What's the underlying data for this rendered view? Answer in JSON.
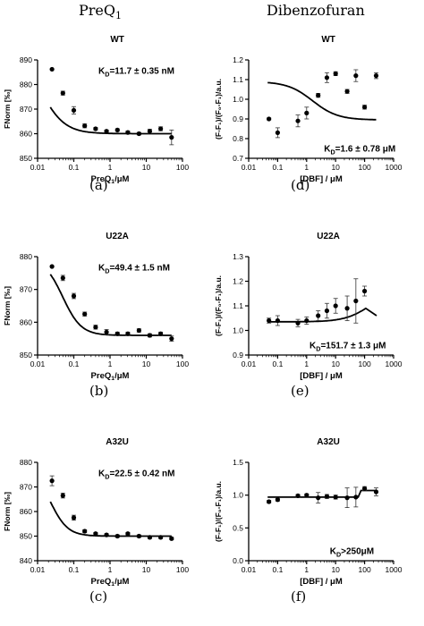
{
  "headers": {
    "left": "PreQ",
    "left_sub": "1",
    "right": "Dibenzofuran"
  },
  "panel_labels": [
    "(a)",
    "(d)",
    "(b)",
    "(e)",
    "(c)",
    "(f)"
  ],
  "chart_data": [
    {
      "id": "a",
      "type": "scatter",
      "title": "WT",
      "annotation": "K_D=11.7 ± 0.35 nM",
      "xlabel": "PreQ1/μM",
      "ylabel": "FNorm [‰]",
      "xscale": "log",
      "xlim": [
        0.01,
        100
      ],
      "ylim": [
        850,
        890
      ],
      "xticks": [
        0.01,
        0.1,
        1,
        10,
        100
      ],
      "xticklabels": [
        "0.01",
        "0.1",
        "1",
        "10",
        "100"
      ],
      "yticks": [
        850,
        860,
        870,
        880,
        890
      ],
      "yticklabels": [
        "850",
        "860",
        "870",
        "880",
        "890"
      ],
      "points": [
        {
          "x": 0.025,
          "y": 886.2,
          "err": 0
        },
        {
          "x": 0.05,
          "y": 876.5,
          "err": 0.8
        },
        {
          "x": 0.1,
          "y": 869.5,
          "err": 1.5
        },
        {
          "x": 0.2,
          "y": 863.2,
          "err": 0.8
        },
        {
          "x": 0.4,
          "y": 862.0,
          "err": 0.5
        },
        {
          "x": 0.8,
          "y": 861.0,
          "err": 0.5
        },
        {
          "x": 1.6,
          "y": 861.5,
          "err": 0.5
        },
        {
          "x": 3.1,
          "y": 860.5,
          "err": 0.6
        },
        {
          "x": 6.3,
          "y": 860.0,
          "err": 0.5
        },
        {
          "x": 12.5,
          "y": 861.0,
          "err": 0.8
        },
        {
          "x": 25,
          "y": 862.0,
          "err": 0.8
        },
        {
          "x": 50,
          "y": 858.5,
          "err": 3.0
        }
      ],
      "fit": {
        "model": "hill",
        "bottom": 860,
        "top": 896,
        "kd": 0.0117,
        "n": 1.3
      }
    },
    {
      "id": "d",
      "type": "scatter",
      "title": "WT",
      "annotation": "K_D=1.6 ± 0.78 μM",
      "xlabel": "[DBF] / μM",
      "ylabel": "(F-F₁)/(F₀-F₁)/a.u.",
      "xscale": "log",
      "xlim": [
        0.01,
        1000
      ],
      "ylim": [
        0.7,
        1.2
      ],
      "xticks": [
        0.01,
        0.1,
        1,
        10,
        100,
        1000
      ],
      "xticklabels": [
        "0.01",
        "0.1",
        "1",
        "10",
        "100",
        "1000"
      ],
      "yticks": [
        0.7,
        0.8,
        0.9,
        1.0,
        1.1,
        1.2
      ],
      "yticklabels": [
        "0.7",
        "0.8",
        "0.9",
        "1.0",
        "1.1",
        "1.2"
      ],
      "points": [
        {
          "x": 0.05,
          "y": 0.9,
          "err": 0.005
        },
        {
          "x": 0.1,
          "y": 0.83,
          "err": 0.025
        },
        {
          "x": 0.5,
          "y": 0.89,
          "err": 0.03
        },
        {
          "x": 1.0,
          "y": 0.93,
          "err": 0.03
        },
        {
          "x": 2.5,
          "y": 1.02,
          "err": 0.01
        },
        {
          "x": 5,
          "y": 1.11,
          "err": 0.025
        },
        {
          "x": 10,
          "y": 1.13,
          "err": 0.01
        },
        {
          "x": 25,
          "y": 1.04,
          "err": 0.01
        },
        {
          "x": 50,
          "y": 1.12,
          "err": 0.03
        },
        {
          "x": 100,
          "y": 0.96,
          "err": 0.01
        },
        {
          "x": 250,
          "y": 1.12,
          "err": 0.015
        }
      ],
      "fit": {
        "model": "hill",
        "bottom": 0.895,
        "top": 1.09,
        "kd": 1.6,
        "n": 1.0
      }
    },
    {
      "id": "b",
      "type": "scatter",
      "title": "U22A",
      "annotation": "K_D=49.4 ± 1.5 nM",
      "xlabel": "PreQ1/μM",
      "ylabel": "FNorm [‰]",
      "xscale": "log",
      "xlim": [
        0.01,
        100
      ],
      "ylim": [
        850,
        880
      ],
      "xticks": [
        0.01,
        0.1,
        1,
        10,
        100
      ],
      "xticklabels": [
        "0.01",
        "0.1",
        "1",
        "10",
        "100"
      ],
      "yticks": [
        850,
        860,
        870,
        880
      ],
      "yticklabels": [
        "850",
        "860",
        "870",
        "880"
      ],
      "points": [
        {
          "x": 0.025,
          "y": 877.0,
          "err": 0
        },
        {
          "x": 0.05,
          "y": 873.5,
          "err": 0.8
        },
        {
          "x": 0.1,
          "y": 868.0,
          "err": 0.8
        },
        {
          "x": 0.2,
          "y": 862.5,
          "err": 0.6
        },
        {
          "x": 0.4,
          "y": 858.5,
          "err": 0.6
        },
        {
          "x": 0.8,
          "y": 857.0,
          "err": 0.8
        },
        {
          "x": 1.6,
          "y": 856.5,
          "err": 0.5
        },
        {
          "x": 3.1,
          "y": 856.5,
          "err": 0.5
        },
        {
          "x": 6.3,
          "y": 857.5,
          "err": 0.5
        },
        {
          "x": 12.5,
          "y": 856.0,
          "err": 0.5
        },
        {
          "x": 25,
          "y": 856.5,
          "err": 0.5
        },
        {
          "x": 50,
          "y": 855.0,
          "err": 0.8
        }
      ],
      "fit": {
        "model": "hill",
        "bottom": 856,
        "top": 879.5,
        "kd": 0.0494,
        "n": 1.7
      }
    },
    {
      "id": "e",
      "type": "scatter",
      "title": "U22A",
      "annotation": "K_D=151.7 ± 1.3 μM",
      "xlabel": "[DBF] / μM",
      "ylabel": "(F-F₁)/(F₀-F₁)/a.u.",
      "xscale": "log",
      "xlim": [
        0.01,
        1000
      ],
      "ylim": [
        0.9,
        1.3
      ],
      "xticks": [
        0.01,
        0.1,
        1,
        10,
        100,
        1000
      ],
      "xticklabels": [
        "0.01",
        "0.1",
        "1",
        "10",
        "100",
        "1000"
      ],
      "yticks": [
        0.9,
        1.0,
        1.1,
        1.2,
        1.3
      ],
      "yticklabels": [
        "0.9",
        "1.0",
        "1.1",
        "1.2",
        "1.3"
      ],
      "points": [
        {
          "x": 0.05,
          "y": 1.04,
          "err": 0.01
        },
        {
          "x": 0.1,
          "y": 1.04,
          "err": 0.02
        },
        {
          "x": 0.5,
          "y": 1.03,
          "err": 0.015
        },
        {
          "x": 1.0,
          "y": 1.04,
          "err": 0.015
        },
        {
          "x": 2.5,
          "y": 1.06,
          "err": 0.02
        },
        {
          "x": 5,
          "y": 1.08,
          "err": 0.03
        },
        {
          "x": 10,
          "y": 1.1,
          "err": 0.03
        },
        {
          "x": 25,
          "y": 1.09,
          "err": 0.05
        },
        {
          "x": 50,
          "y": 1.12,
          "err": 0.09
        },
        {
          "x": 100,
          "y": 1.16,
          "err": 0.02
        }
      ],
      "fit": {
        "model": "peak",
        "base": 1.035,
        "amp": 0.13,
        "kd": 151.7,
        "n": 1.0,
        "peak_x": 110,
        "end_x": 260,
        "end_y": 1.06
      }
    },
    {
      "id": "c",
      "type": "scatter",
      "title": "A32U",
      "annotation": "K_D=22.5 ± 0.42 nM",
      "xlabel": "PreQ1/μM",
      "ylabel": "FNorm [‰]",
      "xscale": "log",
      "xlim": [
        0.01,
        100
      ],
      "ylim": [
        840,
        880
      ],
      "xticks": [
        0.01,
        0.1,
        1,
        10,
        100
      ],
      "xticklabels": [
        "0.01",
        "0.1",
        "1",
        "10",
        "100"
      ],
      "yticks": [
        840,
        850,
        860,
        870,
        880
      ],
      "yticklabels": [
        "840",
        "850",
        "860",
        "870",
        "880"
      ],
      "points": [
        {
          "x": 0.025,
          "y": 872.5,
          "err": 2.0
        },
        {
          "x": 0.05,
          "y": 866.5,
          "err": 1.0
        },
        {
          "x": 0.1,
          "y": 857.5,
          "err": 1.0
        },
        {
          "x": 0.2,
          "y": 852.0,
          "err": 0.6
        },
        {
          "x": 0.4,
          "y": 851.0,
          "err": 0.5
        },
        {
          "x": 0.8,
          "y": 850.5,
          "err": 0.5
        },
        {
          "x": 1.6,
          "y": 850.0,
          "err": 0.5
        },
        {
          "x": 3.1,
          "y": 851.0,
          "err": 0.5
        },
        {
          "x": 6.3,
          "y": 850.0,
          "err": 0.5
        },
        {
          "x": 12.5,
          "y": 849.5,
          "err": 0.5
        },
        {
          "x": 25,
          "y": 849.5,
          "err": 0.5
        },
        {
          "x": 50,
          "y": 849.0,
          "err": 0.5
        }
      ],
      "fit": {
        "model": "hill",
        "bottom": 850,
        "top": 878,
        "kd": 0.0225,
        "n": 1.8
      }
    },
    {
      "id": "f",
      "type": "scatter",
      "title": "A32U",
      "annotation": "K_D>250μM",
      "xlabel": "[DBF] / μM",
      "ylabel": "(F-F₁)/(F₀-F₁)/a.u.",
      "xscale": "log",
      "xlim": [
        0.01,
        1000
      ],
      "ylim": [
        0.0,
        1.5
      ],
      "xticks": [
        0.01,
        0.1,
        1,
        10,
        100,
        1000
      ],
      "xticklabels": [
        "0.01",
        "0.1",
        "1",
        "10",
        "100",
        "1000"
      ],
      "yticks": [
        0.0,
        0.5,
        1.0,
        1.5
      ],
      "yticklabels": [
        "0.0",
        "0.5",
        "1.0",
        "1.5"
      ],
      "points": [
        {
          "x": 0.05,
          "y": 0.9,
          "err": 0.02
        },
        {
          "x": 0.1,
          "y": 0.93,
          "err": 0.02
        },
        {
          "x": 0.5,
          "y": 0.99,
          "err": 0.02
        },
        {
          "x": 1.0,
          "y": 1.0,
          "err": 0.02
        },
        {
          "x": 2.5,
          "y": 0.96,
          "err": 0.08
        },
        {
          "x": 5,
          "y": 0.98,
          "err": 0.03
        },
        {
          "x": 10,
          "y": 0.97,
          "err": 0.03
        },
        {
          "x": 25,
          "y": 0.96,
          "err": 0.15
        },
        {
          "x": 50,
          "y": 0.97,
          "err": 0.15
        },
        {
          "x": 100,
          "y": 1.1,
          "err": 0.03
        },
        {
          "x": 250,
          "y": 1.05,
          "err": 0.06
        }
      ],
      "fit": {
        "model": "step",
        "level": 0.97,
        "step_x": 60,
        "step_y": 1.07
      }
    }
  ]
}
